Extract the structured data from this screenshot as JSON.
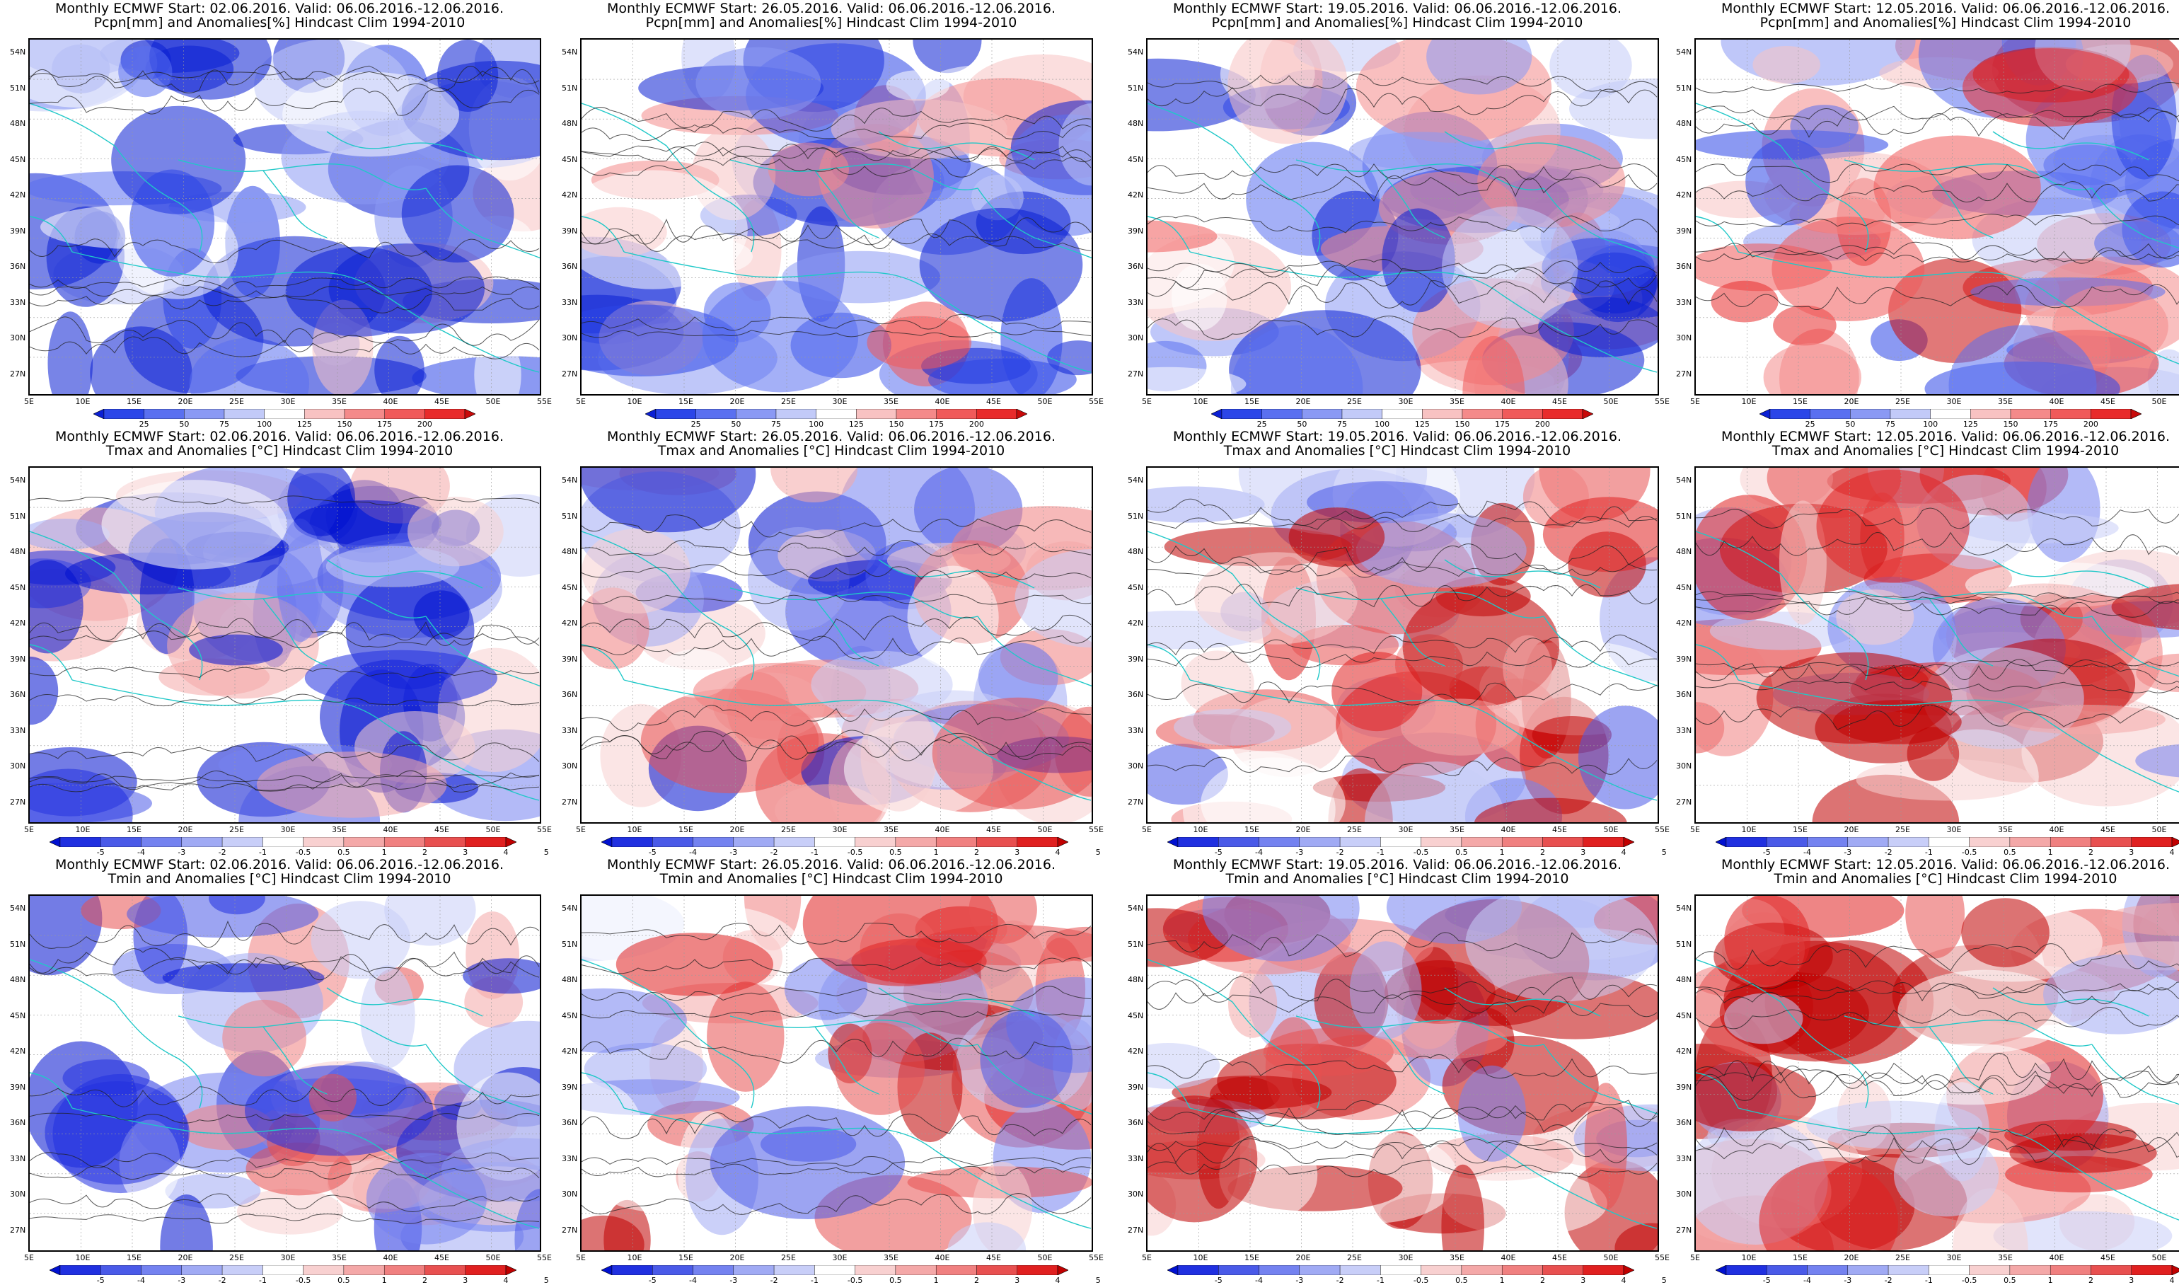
{
  "panels": [
    {
      "line1": "Monthly ECMWF Start: 02.06.2016. Valid: 06.06.2016.-12.06.2016.",
      "line2": "Pcpn[mm] and Anomalies[%] Hindcast Clim 1994-2010",
      "type": "pcpn"
    },
    {
      "line1": "Monthly ECMWF Start: 26.05.2016. Valid: 06.06.2016.-12.06.2016.",
      "line2": "Pcpn[mm] and Anomalies[%] Hindcast Clim 1994-2010",
      "type": "pcpn"
    },
    {
      "line1": "Monthly ECMWF Start: 19.05.2016. Valid: 06.06.2016.-12.06.2016.",
      "line2": "Pcpn[mm] and Anomalies[%] Hindcast Clim 1994-2010",
      "type": "pcpn"
    },
    {
      "line1": "Monthly ECMWF Start: 12.05.2016. Valid: 06.06.2016.-12.06.2016.",
      "line2": "Pcpn[mm] and Anomalies[%] Hindcast Clim 1994-2010",
      "type": "pcpn"
    },
    {
      "line1": "Monthly ECMWF Start: 02.06.2016. Valid: 06.06.2016.-12.06.2016.",
      "line2": "Tmax and Anomalies [°C] Hindcast Clim 1994-2010",
      "type": "temp"
    },
    {
      "line1": "Monthly ECMWF Start: 26.05.2016. Valid: 06.06.2016.-12.06.2016.",
      "line2": "Tmax and Anomalies [°C] Hindcast Clim 1994-2010",
      "type": "temp"
    },
    {
      "line1": "Monthly ECMWF Start: 19.05.2016. Valid: 06.06.2016.-12.06.2016.",
      "line2": "Tmax and Anomalies [°C] Hindcast Clim 1994-2010",
      "type": "temp"
    },
    {
      "line1": "Monthly ECMWF Start: 12.05.2016. Valid: 06.06.2016.-12.06.2016.",
      "line2": "Tmax and Anomalies [°C] Hindcast Clim 1994-2010",
      "type": "temp"
    },
    {
      "line1": "Monthly ECMWF Start: 02.06.2016. Valid: 06.06.2016.-12.06.2016.",
      "line2": "Tmin and Anomalies [°C] Hindcast Clim 1994-2010",
      "type": "temp"
    },
    {
      "line1": "Monthly ECMWF Start: 26.05.2016. Valid: 06.06.2016.-12.06.2016.",
      "line2": "Tmin and Anomalies [°C] Hindcast Clim 1994-2010",
      "type": "temp"
    },
    {
      "line1": "Monthly ECMWF Start: 19.05.2016. Valid: 06.06.2016.-12.06.2016.",
      "line2": "Tmin and Anomalies [°C] Hindcast Clim 1994-2010",
      "type": "temp"
    },
    {
      "line1": "Monthly ECMWF Start: 12.05.2016. Valid: 06.06.2016.-12.06.2016.",
      "line2": "Tmin and Anomalies [°C] Hindcast Clim 1994-2010",
      "type": "temp"
    }
  ],
  "lat_labels": [
    "54N",
    "51N",
    "48N",
    "45N",
    "42N",
    "39N",
    "36N",
    "33N",
    "30N",
    "27N"
  ],
  "lon_labels": [
    "5E",
    "10E",
    "15E",
    "20E",
    "25E",
    "30E",
    "35E",
    "40E",
    "45E",
    "50E",
    "55E"
  ],
  "pcpn_colorbar": {
    "labels": [
      "25",
      "50",
      "75",
      "100",
      "125",
      "150",
      "175",
      "200"
    ],
    "colors": [
      "#0a1fd4",
      "#2b46e8",
      "#5a70f0",
      "#8a99f4",
      "#c2caf8",
      "#ffffff",
      "#f8c2c2",
      "#f48a8a",
      "#f05a5a",
      "#e82b2b",
      "#c80a0a"
    ]
  },
  "temp_colorbar": {
    "labels": [
      "-5",
      "-4",
      "-3",
      "-2",
      "-1",
      "-0.5",
      "0.5",
      "1",
      "2",
      "3",
      "4",
      "5"
    ],
    "colors": [
      "#0010d0",
      "#2030e0",
      "#4a5ae8",
      "#7482f0",
      "#a0aaf4",
      "#c8cef8",
      "#ffffff",
      "#f8d0d0",
      "#f4a8a8",
      "#f08080",
      "#e85050",
      "#e02020",
      "#c00000"
    ]
  },
  "colors": {
    "coast": "#20c8c8",
    "contour": "#202020",
    "frame": "#000000"
  }
}
